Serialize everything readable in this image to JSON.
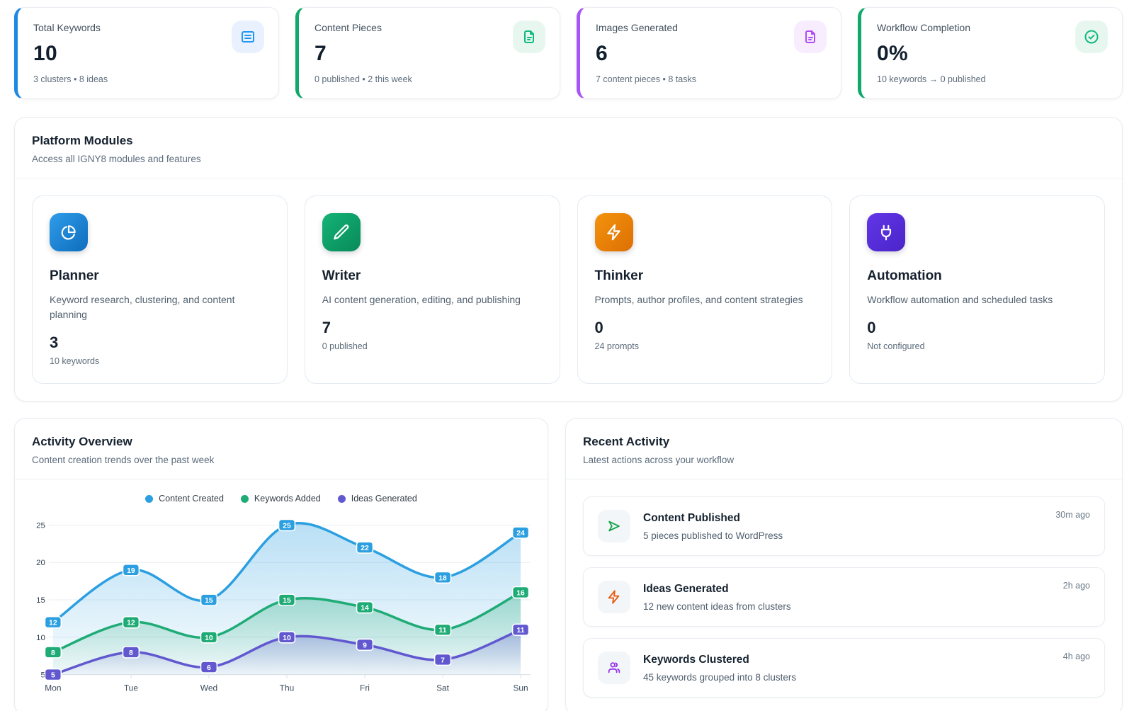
{
  "stats": [
    {
      "label": "Total Keywords",
      "value": "10",
      "sub": "3 clusters • 8 ideas",
      "icon": "list-icon",
      "accent": "#1e88e5",
      "icon_color": "#2196f3",
      "icon_bg": "#e8f1fd"
    },
    {
      "label": "Content Pieces",
      "value": "7",
      "sub": "0 published • 2 this week",
      "icon": "document-icon",
      "accent": "#10a96b",
      "icon_color": "#10b981",
      "icon_bg": "#e7f7ef"
    },
    {
      "label": "Images Generated",
      "value": "6",
      "sub": "7 content pieces • 8 tasks",
      "icon": "image-file-icon",
      "accent": "#a855f7",
      "icon_color": "#b04df0",
      "icon_bg": "#f7edfe"
    },
    {
      "label": "Workflow Completion",
      "value": "0%",
      "sub": "10 keywords → 0 published",
      "icon": "check-circle-icon",
      "accent": "#10a96b",
      "icon_color": "#10b981",
      "icon_bg": "#e7f7ef"
    }
  ],
  "modules": {
    "title": "Platform Modules",
    "subtitle": "Access all IGNY8 modules and features",
    "items": [
      {
        "name": "Planner",
        "description": "Keyword research, clustering, and content planning",
        "value": "3",
        "sub": "10 keywords",
        "icon": "pie-chart-icon",
        "gradient": [
          "#2f9de9",
          "#0e6cbd"
        ]
      },
      {
        "name": "Writer",
        "description": "AI content generation, editing, and publishing",
        "value": "7",
        "sub": "0 published",
        "icon": "pencil-icon",
        "gradient": [
          "#14b377",
          "#088a59"
        ]
      },
      {
        "name": "Thinker",
        "description": "Prompts, author profiles, and content strategies",
        "value": "0",
        "sub": "24 prompts",
        "icon": "bolt-icon",
        "gradient": [
          "#f3930c",
          "#dd6f04"
        ]
      },
      {
        "name": "Automation",
        "description": "Workflow automation and scheduled tasks",
        "value": "0",
        "sub": "Not configured",
        "icon": "plug-icon",
        "gradient": [
          "#6236e8",
          "#4a24c8"
        ]
      }
    ]
  },
  "activity_overview": {
    "title": "Activity Overview",
    "subtitle": "Content creation trends over the past week"
  },
  "chart_data": {
    "type": "area",
    "x": [
      "Mon",
      "Tue",
      "Wed",
      "Thu",
      "Fri",
      "Sat",
      "Sun"
    ],
    "series": [
      {
        "name": "Content Created",
        "color": "#2b9fe0",
        "values": [
          12,
          19,
          15,
          25,
          22,
          18,
          24
        ]
      },
      {
        "name": "Keywords Added",
        "color": "#1fab76",
        "values": [
          8,
          12,
          10,
          15,
          14,
          11,
          16
        ]
      },
      {
        "name": "Ideas Generated",
        "color": "#6158d0",
        "values": [
          5,
          8,
          6,
          10,
          9,
          7,
          11
        ]
      }
    ],
    "ylim": [
      5,
      25
    ],
    "yticks": [
      5,
      10,
      15,
      20,
      25
    ],
    "grid": true,
    "legend_position": "top",
    "point_labels": true
  },
  "recent_activity": {
    "title": "Recent Activity",
    "subtitle": "Latest actions across your workflow",
    "items": [
      {
        "title": "Content Published",
        "description": "5 pieces published to WordPress",
        "time": "30m ago",
        "icon": "send-icon",
        "icon_color": "#16a34a"
      },
      {
        "title": "Ideas Generated",
        "description": "12 new content ideas from clusters",
        "time": "2h ago",
        "icon": "bolt-icon",
        "icon_color": "#ea580c"
      },
      {
        "title": "Keywords Clustered",
        "description": "45 keywords grouped into 8 clusters",
        "time": "4h ago",
        "icon": "users-icon",
        "icon_color": "#9333ea"
      }
    ]
  }
}
